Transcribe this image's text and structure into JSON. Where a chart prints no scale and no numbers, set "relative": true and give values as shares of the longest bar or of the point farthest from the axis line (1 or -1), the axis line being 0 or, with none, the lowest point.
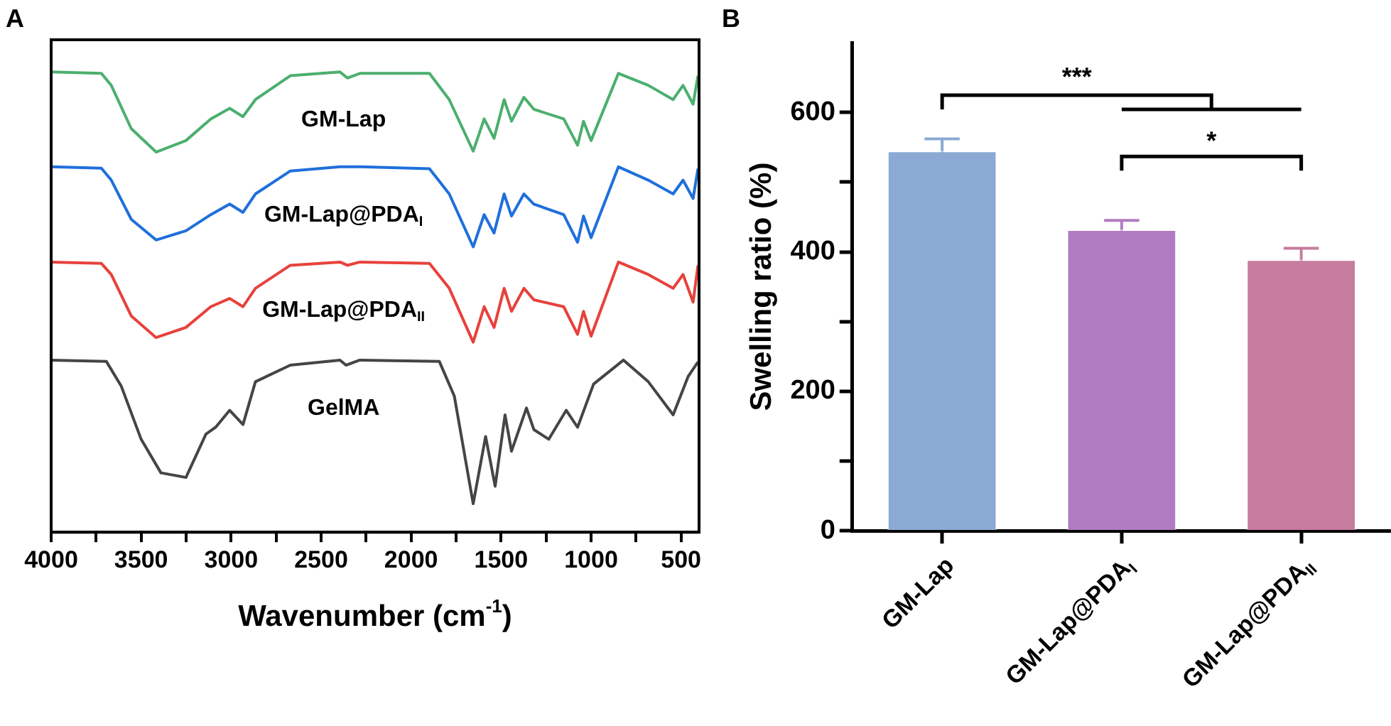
{
  "chart_data": [
    {
      "type": "line",
      "title": "A",
      "xlabel": "Wavenumber (cm$^{-1}$)",
      "relative": true,
      "xlim": [
        4000,
        400
      ],
      "xticks": [
        4000,
        {
          "value": 3750,
          "label": null
        },
        3500,
        {
          "value": 3250,
          "label": null
        },
        3000,
        {
          "value": 2750,
          "label": null
        },
        2500,
        {
          "value": 2250,
          "label": null
        },
        2000,
        {
          "value": 1750,
          "label": null
        },
        1500,
        {
          "value": 1250,
          "label": null
        },
        1000,
        {
          "value": 750,
          "label": null
        },
        500
      ],
      "grid": false,
      "legend": false,
      "tick_labels": "x",
      "marker": "none",
      "line_style": "solid",
      "series": [
        {
          "name": "GM-Lap",
          "color": "#4caf6e",
          "x": [
            4000,
            3721,
            3666,
            3555,
            3417,
            3251,
            3113,
            3008,
            2934,
            2865,
            2671,
            2395,
            2354,
            2285,
            1898,
            1788,
            1655,
            1594,
            1539,
            1483,
            1442,
            1373,
            1318,
            1152,
            1075,
            1042,
            1000,
            848,
            682,
            544,
            489,
            433,
            406
          ],
          "values": [
            1.0,
            0.997,
            0.971,
            0.877,
            0.826,
            0.851,
            0.898,
            0.921,
            0.903,
            0.94,
            0.992,
            1.0,
            0.987,
            0.997,
            0.997,
            0.94,
            0.828,
            0.898,
            0.856,
            0.94,
            0.893,
            0.945,
            0.919,
            0.898,
            0.841,
            0.893,
            0.851,
            0.997,
            0.971,
            0.94,
            0.971,
            0.93,
            0.992
          ]
        },
        {
          "name": "GM-Lap@PDA$_{I}$",
          "color": "#1f6fdc",
          "x": [
            4000,
            3721,
            3666,
            3555,
            3417,
            3251,
            3113,
            3008,
            2934,
            2865,
            2671,
            2395,
            2285,
            1898,
            1788,
            1655,
            1594,
            1539,
            1483,
            1442,
            1373,
            1318,
            1152,
            1075,
            1042,
            1000,
            848,
            682,
            544,
            489,
            433,
            406
          ],
          "values": [
            0.794,
            0.791,
            0.765,
            0.68,
            0.635,
            0.655,
            0.69,
            0.713,
            0.695,
            0.735,
            0.785,
            0.794,
            0.794,
            0.79,
            0.735,
            0.62,
            0.69,
            0.65,
            0.735,
            0.687,
            0.735,
            0.713,
            0.69,
            0.63,
            0.687,
            0.64,
            0.794,
            0.765,
            0.735,
            0.765,
            0.725,
            0.79
          ]
        },
        {
          "name": "GM-Lap@PDA$_{II}$",
          "color": "#e8413c",
          "x": [
            4000,
            3721,
            3666,
            3555,
            3417,
            3251,
            3113,
            3008,
            2934,
            2865,
            2671,
            2395,
            2354,
            2285,
            1898,
            1788,
            1655,
            1594,
            1539,
            1483,
            1442,
            1373,
            1318,
            1152,
            1075,
            1042,
            1000,
            848,
            682,
            544,
            489,
            433,
            406
          ],
          "values": [
            0.587,
            0.584,
            0.56,
            0.47,
            0.423,
            0.445,
            0.49,
            0.508,
            0.49,
            0.53,
            0.58,
            0.587,
            0.58,
            0.587,
            0.584,
            0.53,
            0.413,
            0.49,
            0.445,
            0.53,
            0.48,
            0.53,
            0.505,
            0.49,
            0.43,
            0.48,
            0.426,
            0.587,
            0.56,
            0.53,
            0.56,
            0.5,
            0.58
          ]
        },
        {
          "name": "GelMA",
          "color": "#454545",
          "x": [
            4000,
            3693,
            3610,
            3500,
            3390,
            3251,
            3140,
            3086,
            3008,
            2934,
            2865,
            2671,
            2395,
            2362,
            2285,
            1843,
            1760,
            1655,
            1586,
            1533,
            1478,
            1442,
            1359,
            1318,
            1235,
            1138,
            1075,
            986,
            820,
            682,
            544,
            461,
            406
          ],
          "values": [
            0.374,
            0.371,
            0.317,
            0.202,
            0.129,
            0.119,
            0.213,
            0.228,
            0.265,
            0.234,
            0.327,
            0.363,
            0.374,
            0.363,
            0.374,
            0.371,
            0.296,
            0.062,
            0.208,
            0.1,
            0.255,
            0.176,
            0.27,
            0.223,
            0.202,
            0.265,
            0.228,
            0.322,
            0.374,
            0.327,
            0.255,
            0.338,
            0.37
          ]
        }
      ]
    },
    {
      "type": "bar",
      "title": "B",
      "ylabel": "Swelling ratio (%)",
      "categories": [
        "GM-Lap",
        "GM-Lap@PDA$_{I}$",
        "GM-Lap@PDA$_{II}$"
      ],
      "values": [
        545,
        432,
        389
      ],
      "errors": [
        17,
        13,
        16
      ],
      "colors": [
        "#8aaad3",
        "#b07cbf",
        "#c57c9e"
      ],
      "ylim": [
        0,
        700
      ],
      "yticks": [
        0,
        {
          "value": 100,
          "label": null
        },
        200,
        {
          "value": 300,
          "label": null
        },
        400,
        {
          "value": 500,
          "label": null
        },
        600
      ],
      "grid": false,
      "legend": false,
      "annotations": [
        "***",
        "*"
      ]
    }
  ]
}
